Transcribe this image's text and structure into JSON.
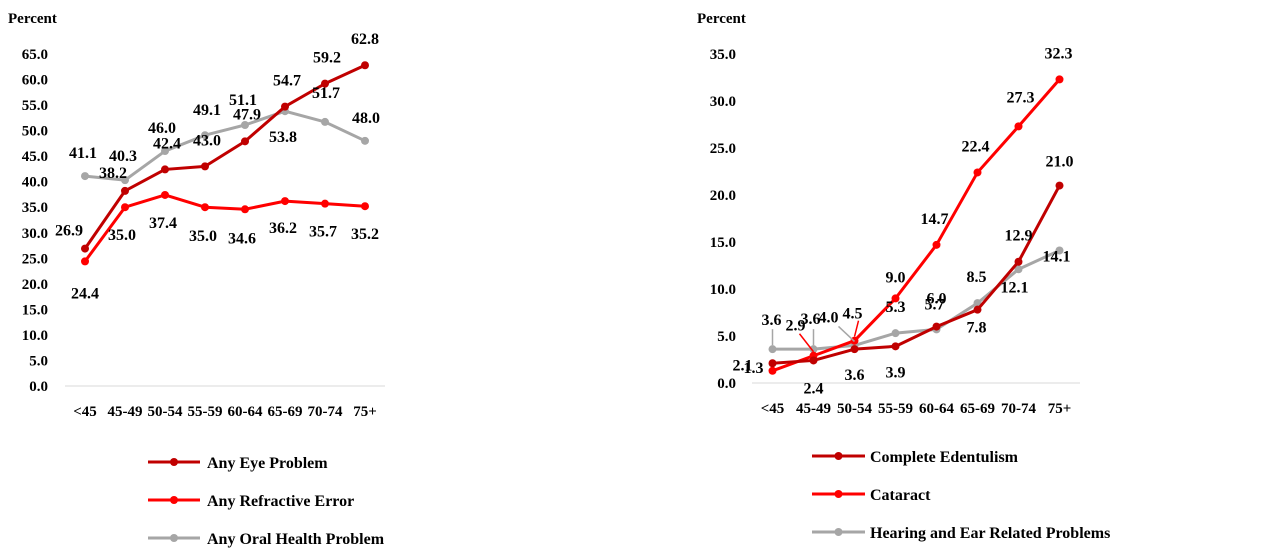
{
  "chart_data": [
    {
      "type": "line",
      "ylabel": "Percent",
      "ylim": [
        0,
        65
      ],
      "yticks": [
        "0.0",
        "5.0",
        "10.0",
        "15.0",
        "20.0",
        "25.0",
        "30.0",
        "35.0",
        "40.0",
        "45.0",
        "50.0",
        "55.0",
        "60.0",
        "65.0"
      ],
      "categories": [
        "<45",
        "45-49",
        "50-54",
        "55-59",
        "60-64",
        "65-69",
        "70-74",
        "75+"
      ],
      "legend_position": "bottom",
      "series": [
        {
          "name": "Any Eye Problem",
          "color": "#C00000",
          "values": [
            26.9,
            38.2,
            42.4,
            43.0,
            47.9,
            54.7,
            59.2,
            62.8
          ]
        },
        {
          "name": "Any Refractive Error",
          "color": "#FF0000",
          "values": [
            24.4,
            35.0,
            37.4,
            35.0,
            34.6,
            36.2,
            35.7,
            35.2
          ]
        },
        {
          "name": "Any Oral Health Problem",
          "color": "#A6A6A6",
          "values": [
            41.1,
            40.3,
            46.0,
            49.1,
            51.1,
            53.8,
            51.7,
            48.0
          ]
        }
      ]
    },
    {
      "type": "line",
      "ylabel": "Percent",
      "ylim": [
        0,
        35
      ],
      "yticks": [
        "0.0",
        "5.0",
        "10.0",
        "15.0",
        "20.0",
        "25.0",
        "30.0",
        "35.0"
      ],
      "categories": [
        "<45",
        "45-49",
        "50-54",
        "55-59",
        "60-64",
        "65-69",
        "70-74",
        "75+"
      ],
      "legend_position": "bottom",
      "series": [
        {
          "name": "Complete Edentulism",
          "color": "#C00000",
          "values": [
            2.1,
            2.4,
            3.6,
            3.9,
            6.0,
            7.8,
            12.9,
            21.0
          ]
        },
        {
          "name": "Cataract",
          "color": "#FF0000",
          "values": [
            1.3,
            2.9,
            4.5,
            9.0,
            14.7,
            22.4,
            27.3,
            32.3
          ]
        },
        {
          "name": "Hearing and Ear Related Problems",
          "color": "#A6A6A6",
          "values": [
            3.6,
            3.6,
            4.0,
            5.3,
            5.7,
            8.5,
            12.1,
            14.1
          ]
        }
      ]
    }
  ]
}
